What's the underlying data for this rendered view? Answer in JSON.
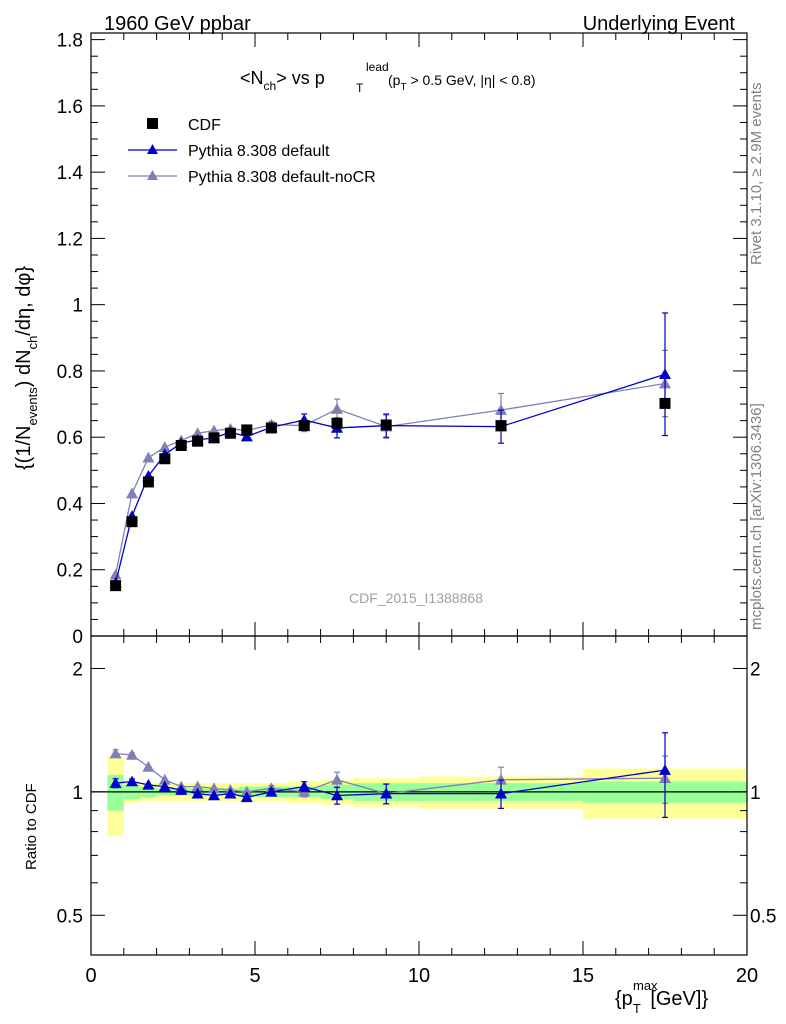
{
  "header": {
    "left": "1960 GeV ppbar",
    "right": "Underlying Event"
  },
  "title": {
    "main": "<N",
    "ch_sub": "ch",
    "vs": "> vs p",
    "lead_sup": "lead",
    "T_sub": "T",
    "cut_open": " (p",
    "cut_T": "T",
    "cut_rest": " > 0.5 GeV, |η| < 0.8)"
  },
  "side_labels": {
    "rivet": "Rivet 3.1.10, ≥ 2.9M events",
    "mcplots": "mcplots.cern.ch [arXiv:1306.3436]"
  },
  "watermark": "CDF_2015_I1388868",
  "axes": {
    "ylabel_main": "{(1/N_events) dN_ch/dη, dφ}",
    "ylabel_parts": [
      "{(1/N",
      "events",
      ") dN",
      "ch",
      "/dη, dφ}"
    ],
    "ylabel_ratio": "Ratio to CDF",
    "xlabel_parts": [
      "{p",
      "T",
      "max",
      " [GeV]}"
    ],
    "xticks": [
      "0",
      "5",
      "10",
      "15",
      "20"
    ],
    "yticks_main": [
      "0",
      "0.2",
      "0.4",
      "0.6",
      "0.8",
      "1",
      "1.2",
      "1.4",
      "1.6",
      "1.8"
    ],
    "yticks_ratio": [
      "0.5",
      "1",
      "2"
    ]
  },
  "legend": {
    "cdf": "CDF",
    "default": "Pythia 8.308 default",
    "nocr": "Pythia 8.308 default-noCR"
  },
  "colors": {
    "cdf": "#000000",
    "default": "#0000cc",
    "nocr": "#8080b3",
    "band_inner": "#99ff99",
    "band_outer": "#ffff99"
  },
  "chart_data": {
    "type": "scatter",
    "xlim": [
      0,
      20
    ],
    "ylim_main": [
      0,
      1.82
    ],
    "ylim_ratio": [
      0.4,
      2.4
    ],
    "ratio_scale": "log",
    "bins": [
      [
        0.5,
        1.0
      ],
      [
        1.0,
        1.5
      ],
      [
        1.5,
        2.0
      ],
      [
        2.0,
        2.5
      ],
      [
        2.5,
        3.0
      ],
      [
        3.0,
        3.5
      ],
      [
        3.5,
        4.0
      ],
      [
        4.0,
        4.5
      ],
      [
        4.5,
        5.0
      ],
      [
        5.0,
        6.0
      ],
      [
        6.0,
        7.0
      ],
      [
        7.0,
        8.0
      ],
      [
        8.0,
        10.0
      ],
      [
        10.0,
        15.0
      ],
      [
        15.0,
        20.0
      ]
    ],
    "x": [
      0.75,
      1.25,
      1.75,
      2.25,
      2.75,
      3.25,
      3.75,
      4.25,
      4.75,
      5.5,
      6.5,
      7.5,
      9.0,
      12.5,
      17.5
    ],
    "cdf": {
      "values": [
        0.152,
        0.345,
        0.465,
        0.535,
        0.575,
        0.588,
        0.598,
        0.612,
        0.622,
        0.628,
        0.635,
        0.642,
        0.637,
        0.635,
        0.702
      ],
      "ratio_err1": [
        0.1,
        0.04,
        0.03,
        0.02,
        0.02,
        0.02,
        0.02,
        0.02,
        0.03,
        0.03,
        0.03,
        0.04,
        0.05,
        0.05,
        0.06
      ],
      "ratio_err2": [
        0.22,
        0.06,
        0.05,
        0.05,
        0.05,
        0.05,
        0.05,
        0.05,
        0.05,
        0.05,
        0.06,
        0.07,
        0.08,
        0.09,
        0.14
      ]
    },
    "series": [
      {
        "name": "Pythia 8.308 default",
        "values": [
          0.16,
          0.362,
          0.483,
          0.548,
          0.582,
          0.592,
          0.598,
          0.615,
          0.602,
          0.63,
          0.652,
          0.628,
          0.635,
          0.632,
          0.79
        ],
        "errors": [
          0.004,
          0.005,
          0.005,
          0.005,
          0.005,
          0.005,
          0.005,
          0.006,
          0.006,
          0.01,
          0.018,
          0.03,
          0.035,
          0.05,
          0.185
        ],
        "ratio": [
          1.05,
          1.06,
          1.04,
          1.03,
          1.01,
          0.99,
          0.98,
          0.99,
          0.97,
          1.0,
          1.03,
          0.98,
          0.99,
          0.99,
          1.13
        ]
      },
      {
        "name": "Pythia 8.308 default-noCR",
        "values": [
          0.185,
          0.43,
          0.538,
          0.57,
          0.59,
          0.612,
          0.62,
          0.625,
          0.62,
          0.638,
          0.635,
          0.685,
          0.632,
          0.682,
          0.762
        ],
        "errors": [
          0.004,
          0.005,
          0.005,
          0.005,
          0.005,
          0.005,
          0.005,
          0.006,
          0.006,
          0.01,
          0.018,
          0.03,
          0.035,
          0.05,
          0.1
        ],
        "ratio": [
          1.24,
          1.23,
          1.15,
          1.07,
          1.03,
          1.03,
          1.02,
          1.01,
          1.0,
          1.02,
          1.0,
          1.07,
          0.99,
          1.07,
          1.08
        ]
      }
    ]
  }
}
